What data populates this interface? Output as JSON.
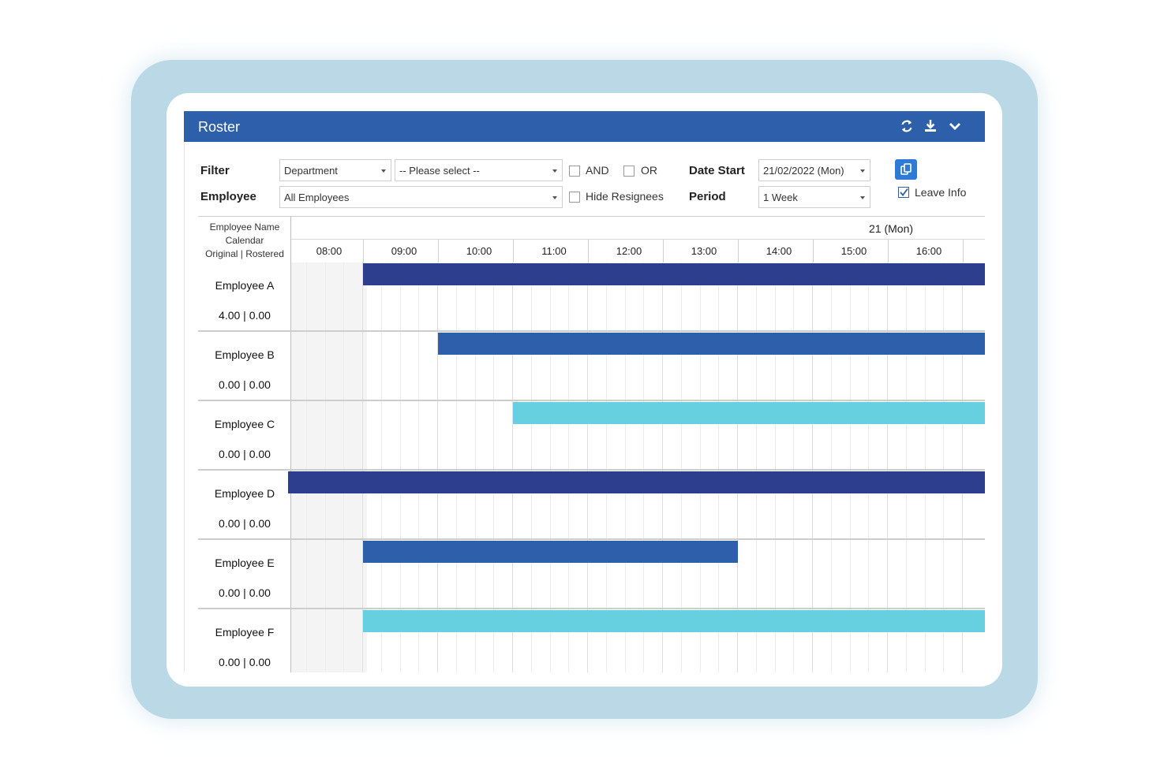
{
  "window": {
    "title": "Roster"
  },
  "icons": {
    "refresh": "refresh-icon",
    "download": "download-icon",
    "collapse": "chevron-down-icon",
    "copy": "copy-icon"
  },
  "colors": {
    "header": "#2e5fab",
    "navy": "#2e3e8f",
    "blue": "#2e5fab",
    "cyan": "#66cfe0",
    "frame": "#bad8e6"
  },
  "filters": {
    "filter_label": "Filter",
    "employee_label": "Employee",
    "department_value": "Department",
    "please_select_value": "-- Please select --",
    "employee_value": "All Employees",
    "and_label": "AND",
    "or_label": "OR",
    "hide_resignees_label": "Hide Resignees",
    "date_start_label": "Date Start",
    "date_start_value": "21/02/2022 (Mon)",
    "period_label": "Period",
    "period_value": "1 Week",
    "leave_info_label": "Leave Info",
    "leave_info_checked": true,
    "and_checked": false,
    "or_checked": false,
    "hide_resignees_checked": false
  },
  "grid": {
    "header_line1": "Employee Name",
    "header_line2": "Calendar",
    "header_line3": "Original | Rostered",
    "day_label": "21 (Mon)",
    "times": [
      "08:00",
      "09:00",
      "10:00",
      "11:00",
      "12:00",
      "13:00",
      "14:00",
      "15:00",
      "16:00"
    ]
  },
  "employees": [
    {
      "name": "Employee A",
      "hours": "4.00 | 0.00",
      "shift_start": "09:00",
      "color": "#2e3e8f"
    },
    {
      "name": "Employee B",
      "hours": "0.00 | 0.00",
      "shift_start": "10:00",
      "color": "#2e5fab"
    },
    {
      "name": "Employee C",
      "hours": "0.00 | 0.00",
      "shift_start": "11:00",
      "color": "#66cfe0"
    },
    {
      "name": "Employee D",
      "hours": "0.00 | 0.00",
      "shift_start": "08:00",
      "color": "#2e3e8f"
    },
    {
      "name": "Employee E",
      "hours": "0.00 | 0.00",
      "shift_start": "09:00",
      "shift_end": "14:00",
      "color": "#2e5fab"
    },
    {
      "name": "Employee F",
      "hours": "0.00 | 0.00",
      "shift_start": "09:00",
      "color": "#66cfe0"
    }
  ]
}
